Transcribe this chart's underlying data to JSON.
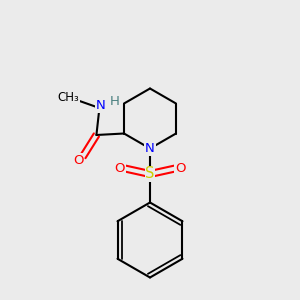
{
  "background_color": "#ebebeb",
  "bond_color": "#000000",
  "bond_lw": 1.5,
  "atom_colors": {
    "N": "#0000ff",
    "O": "#ff0000",
    "S": "#cccc00",
    "H": "#4a8080",
    "C": "#000000"
  },
  "font_size": 9.5,
  "figsize": [
    3.0,
    3.0
  ],
  "dpi": 100
}
